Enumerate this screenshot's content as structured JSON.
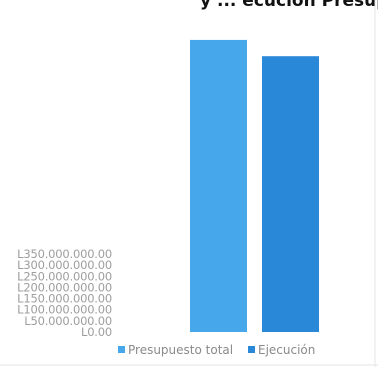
{
  "chart_data": {
    "type": "bar",
    "title": "y ... ecución Presupuestaria",
    "categories": [
      ""
    ],
    "series": [
      {
        "name": "Presupuesto total",
        "values": [
          1310000000
        ],
        "color": "#46a8ea"
      },
      {
        "name": "Ejecución",
        "values": [
          1237000000
        ],
        "color": "#2a88d8"
      }
    ],
    "ylim": [
      0,
      1350000000
    ],
    "yticks": [
      0,
      50000000,
      100000000,
      150000000,
      200000000,
      250000000,
      300000000,
      350000000
    ],
    "ytick_labels": [
      "L0.00",
      "L50.000.000.00",
      "L100.000.000.00",
      "L150.000.000.00",
      "L200.000.000.00",
      "L250.000.000.00",
      "L300.000.000.00",
      "L350.000.000.00"
    ],
    "grid": false,
    "legend": "bottom",
    "xlabel": "",
    "ylabel": ""
  }
}
